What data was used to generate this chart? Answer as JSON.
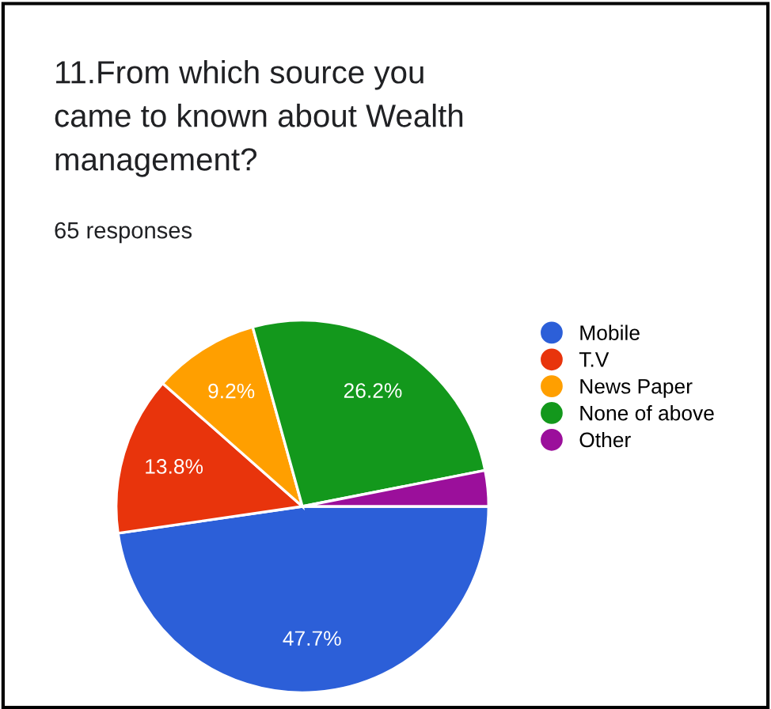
{
  "chart_data": {
    "type": "pie",
    "title": "11.From which source you\ncame to known about Wealth\nmanagement?",
    "subtitle": "65 responses",
    "categories": [
      "Mobile",
      "T.V",
      "News Paper",
      "None of above",
      "Other"
    ],
    "values": [
      47.7,
      13.8,
      9.2,
      26.2,
      3.1
    ],
    "colors": [
      "#2c5fd8",
      "#e8340c",
      "#ff9f00",
      "#13981c",
      "#9b0f9b"
    ],
    "value_labels": [
      "47.7%",
      "13.8%",
      "9.2%",
      "26.2%",
      null
    ],
    "legend": "right"
  }
}
